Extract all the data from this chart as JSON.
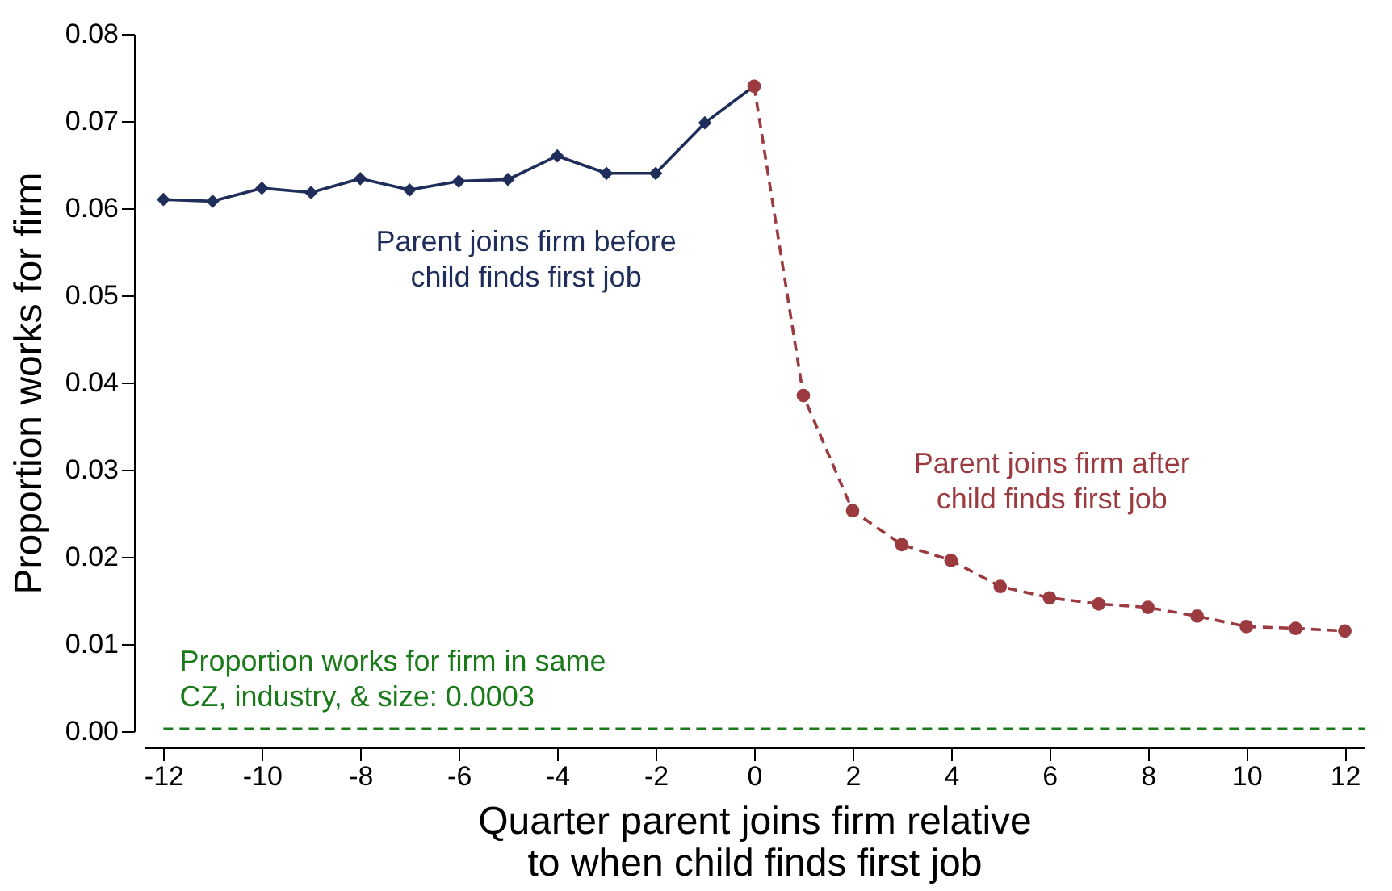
{
  "chart_data": {
    "type": "line",
    "xlabel": "Quarter parent joins firm relative\nto when child finds first job",
    "ylabel": "Proportion works for firm",
    "xlim": [
      -12.4,
      12.4
    ],
    "xticks": [
      -12,
      -10,
      -8,
      -6,
      -4,
      -2,
      0,
      2,
      4,
      6,
      8,
      10,
      12
    ],
    "ylim": [
      0,
      0.08
    ],
    "yticks": [
      {
        "value": 0,
        "label": "0.00"
      },
      0.01,
      0.02,
      0.03,
      0.04,
      0.05,
      0.06,
      0.07,
      0.08
    ],
    "grid": false,
    "series": [
      {
        "name": "Parent joins firm before\nchild finds first job",
        "color": "#1f2d5a",
        "marker": "diamond",
        "line_style": "solid",
        "x": [
          -12,
          -11,
          -10,
          -9,
          -8,
          -7,
          -6,
          -5,
          -4,
          -3,
          -2,
          -1,
          0
        ],
        "values": [
          0.061,
          0.0608,
          0.0623,
          0.0618,
          0.0634,
          0.0621,
          0.0631,
          0.0633,
          0.066,
          0.064,
          0.064,
          0.0698,
          0.074
        ]
      },
      {
        "name": "Parent joins firm after\nchild finds first job",
        "color": "#9b3b40",
        "marker": "circle",
        "line_style": "dashed",
        "x": [
          0,
          1,
          2,
          3,
          4,
          5,
          6,
          7,
          8,
          9,
          10,
          11,
          12
        ],
        "values": [
          0.074,
          0.0385,
          0.0253,
          0.0214,
          0.0196,
          0.0166,
          0.0153,
          0.0146,
          0.0142,
          0.0132,
          0.012,
          0.0118,
          0.0115
        ]
      }
    ],
    "ref_lines": [
      {
        "axis": "y",
        "value": 0.0003,
        "label": "Proportion works for firm in same\nCZ, industry, & size: 0.0003",
        "color": "#1a7a1a",
        "line_style": "dashed"
      }
    ]
  }
}
